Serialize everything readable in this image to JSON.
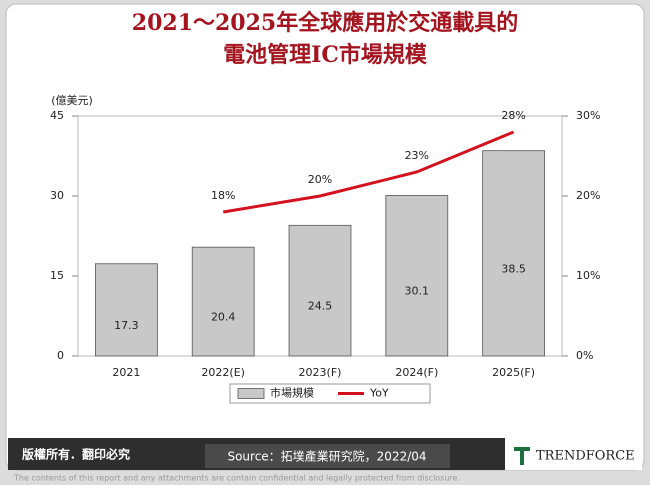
{
  "title_lines": [
    "2021～2025年全球應用於交通載具的",
    "電池管理IC市場規模"
  ],
  "chart_data": {
    "type": "bar",
    "y_unit_label": "(億美元)",
    "categories": [
      "2021",
      "2022(E)",
      "2023(F)",
      "2024(F)",
      "2025(F)"
    ],
    "series": [
      {
        "name": "市場規模",
        "type": "bar",
        "color": "#c8c8c8",
        "values": [
          17.3,
          20.4,
          24.5,
          30.1,
          38.5
        ]
      },
      {
        "name": "YoY",
        "type": "line",
        "axis": "y2",
        "color": "#d4121e",
        "values": [
          null,
          18,
          20,
          23,
          28
        ],
        "value_labels": [
          null,
          "18%",
          "20%",
          "23%",
          "28%"
        ]
      }
    ],
    "ylim": [
      0,
      45
    ],
    "yticks": [
      0,
      15,
      30,
      45
    ],
    "y2lim": [
      0,
      30
    ],
    "y2ticks": [
      {
        "value": 0,
        "label": "0%"
      },
      {
        "value": 10,
        "label": "10%"
      },
      {
        "value": 20,
        "label": "20%"
      },
      {
        "value": 30,
        "label": "30%"
      }
    ],
    "legend": "bottom"
  },
  "footer": {
    "copyright": "版權所有．翻印必究",
    "source": "Source：拓墣產業研究院，2022/04",
    "logo": "TRENDFORCE",
    "disclaimer": "The contents of this report and any attachments are contain confidential and legally protected from disclosure."
  }
}
